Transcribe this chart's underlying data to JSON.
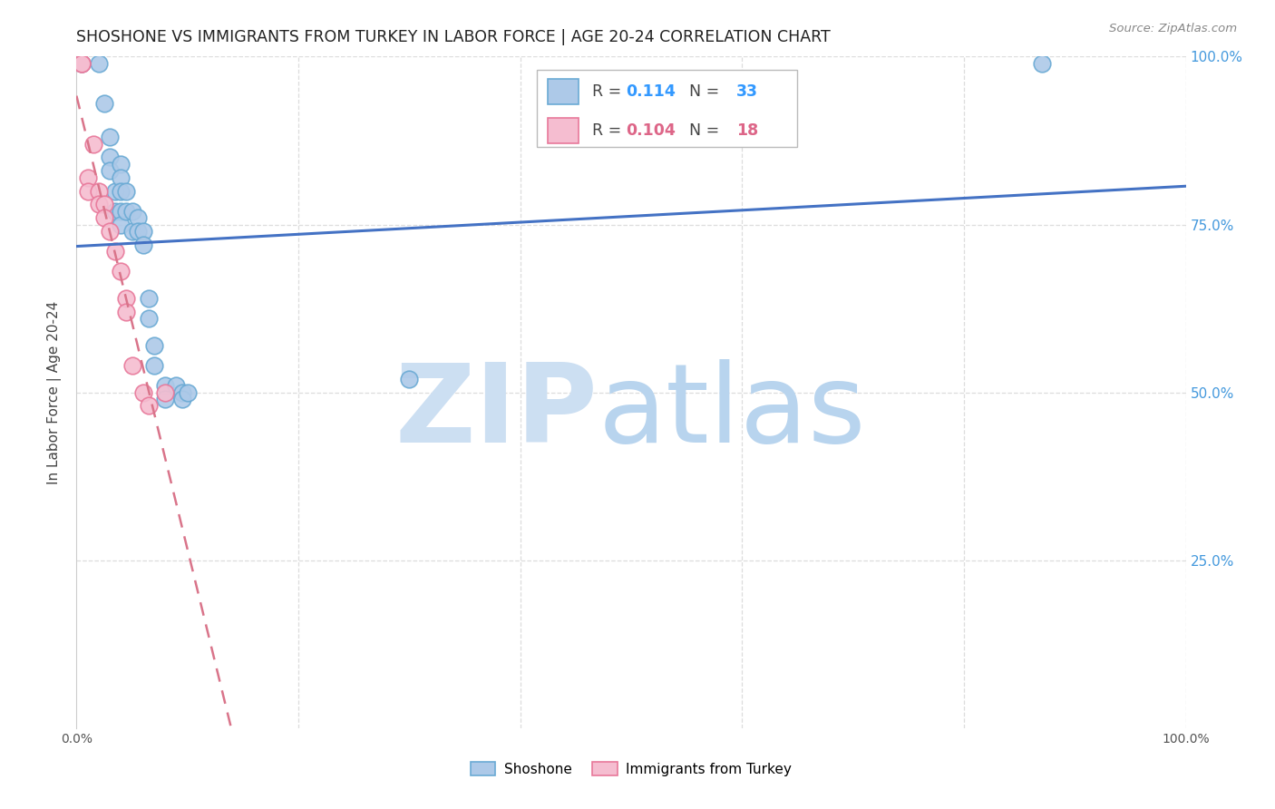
{
  "title": "SHOSHONE VS IMMIGRANTS FROM TURKEY IN LABOR FORCE | AGE 20-24 CORRELATION CHART",
  "source": "Source: ZipAtlas.com",
  "ylabel": "In Labor Force | Age 20-24",
  "xlim": [
    0.0,
    1.0
  ],
  "ylim": [
    0.0,
    1.0
  ],
  "xticks": [
    0.0,
    0.2,
    0.4,
    0.6,
    0.8,
    1.0
  ],
  "yticks": [
    0.0,
    0.25,
    0.5,
    0.75,
    1.0
  ],
  "xticklabels": [
    "0.0%",
    "",
    "",
    "",
    "",
    "100.0%"
  ],
  "yticklabels_right": [
    "",
    "25.0%",
    "50.0%",
    "75.0%",
    "100.0%"
  ],
  "shoshone_x": [
    0.005,
    0.02,
    0.025,
    0.03,
    0.03,
    0.03,
    0.035,
    0.035,
    0.04,
    0.04,
    0.04,
    0.04,
    0.04,
    0.045,
    0.045,
    0.05,
    0.05,
    0.055,
    0.055,
    0.06,
    0.06,
    0.065,
    0.065,
    0.07,
    0.07,
    0.08,
    0.08,
    0.09,
    0.095,
    0.095,
    0.1,
    0.3,
    0.87
  ],
  "shoshone_y": [
    0.99,
    0.99,
    0.93,
    0.88,
    0.85,
    0.83,
    0.8,
    0.77,
    0.84,
    0.82,
    0.8,
    0.77,
    0.75,
    0.8,
    0.77,
    0.77,
    0.74,
    0.76,
    0.74,
    0.74,
    0.72,
    0.64,
    0.61,
    0.57,
    0.54,
    0.51,
    0.49,
    0.51,
    0.5,
    0.49,
    0.5,
    0.52,
    0.99
  ],
  "turkey_x": [
    0.005,
    0.005,
    0.01,
    0.01,
    0.015,
    0.02,
    0.02,
    0.025,
    0.025,
    0.03,
    0.035,
    0.04,
    0.045,
    0.045,
    0.05,
    0.06,
    0.065,
    0.08
  ],
  "turkey_y": [
    0.99,
    0.99,
    0.82,
    0.8,
    0.87,
    0.8,
    0.78,
    0.78,
    0.76,
    0.74,
    0.71,
    0.68,
    0.64,
    0.62,
    0.54,
    0.5,
    0.48,
    0.5
  ],
  "shoshone_color": "#adc9e8",
  "shoshone_edge_color": "#6aaad4",
  "turkey_color": "#f5bdd0",
  "turkey_edge_color": "#e8789a",
  "shoshone_R": 0.114,
  "shoshone_N": 33,
  "turkey_R": 0.104,
  "turkey_N": 18,
  "line_shoshone_color": "#4472c4",
  "line_turkey_color": "#d9748a",
  "background_color": "#ffffff",
  "grid_color": "#dddddd",
  "watermark_zip": "ZIP",
  "watermark_atlas": "atlas",
  "watermark_color": "#ccdff2"
}
